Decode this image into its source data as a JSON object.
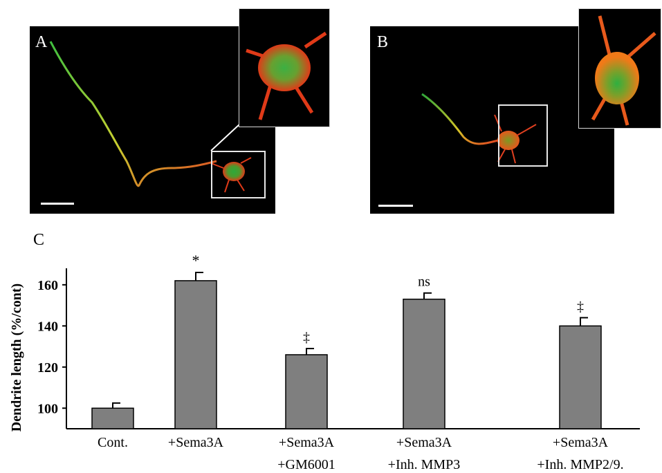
{
  "panels": {
    "a_label": "A",
    "b_label": "B",
    "c_label": "C"
  },
  "chart_data": {
    "type": "bar",
    "title": "",
    "ylabel": "Dendrite length (%/cont)",
    "xlabel": "",
    "ylim": [
      90,
      166
    ],
    "yticks": [
      100,
      120,
      140,
      160
    ],
    "categories": [
      [
        "Cont."
      ],
      [
        "+Sema3A"
      ],
      [
        "+Sema3A",
        "+GM6001"
      ],
      [
        "+Sema3A",
        "+Inh. MMP3"
      ],
      [
        "+Sema3A",
        "+Inh. MMP2/9."
      ]
    ],
    "values": [
      100,
      162,
      126,
      153,
      140
    ],
    "errors": [
      2.5,
      4,
      3,
      3,
      4
    ],
    "annotations": [
      "",
      "*",
      "‡",
      "ns",
      "‡"
    ],
    "bar_color": "#7f7f7f",
    "grid": false
  }
}
